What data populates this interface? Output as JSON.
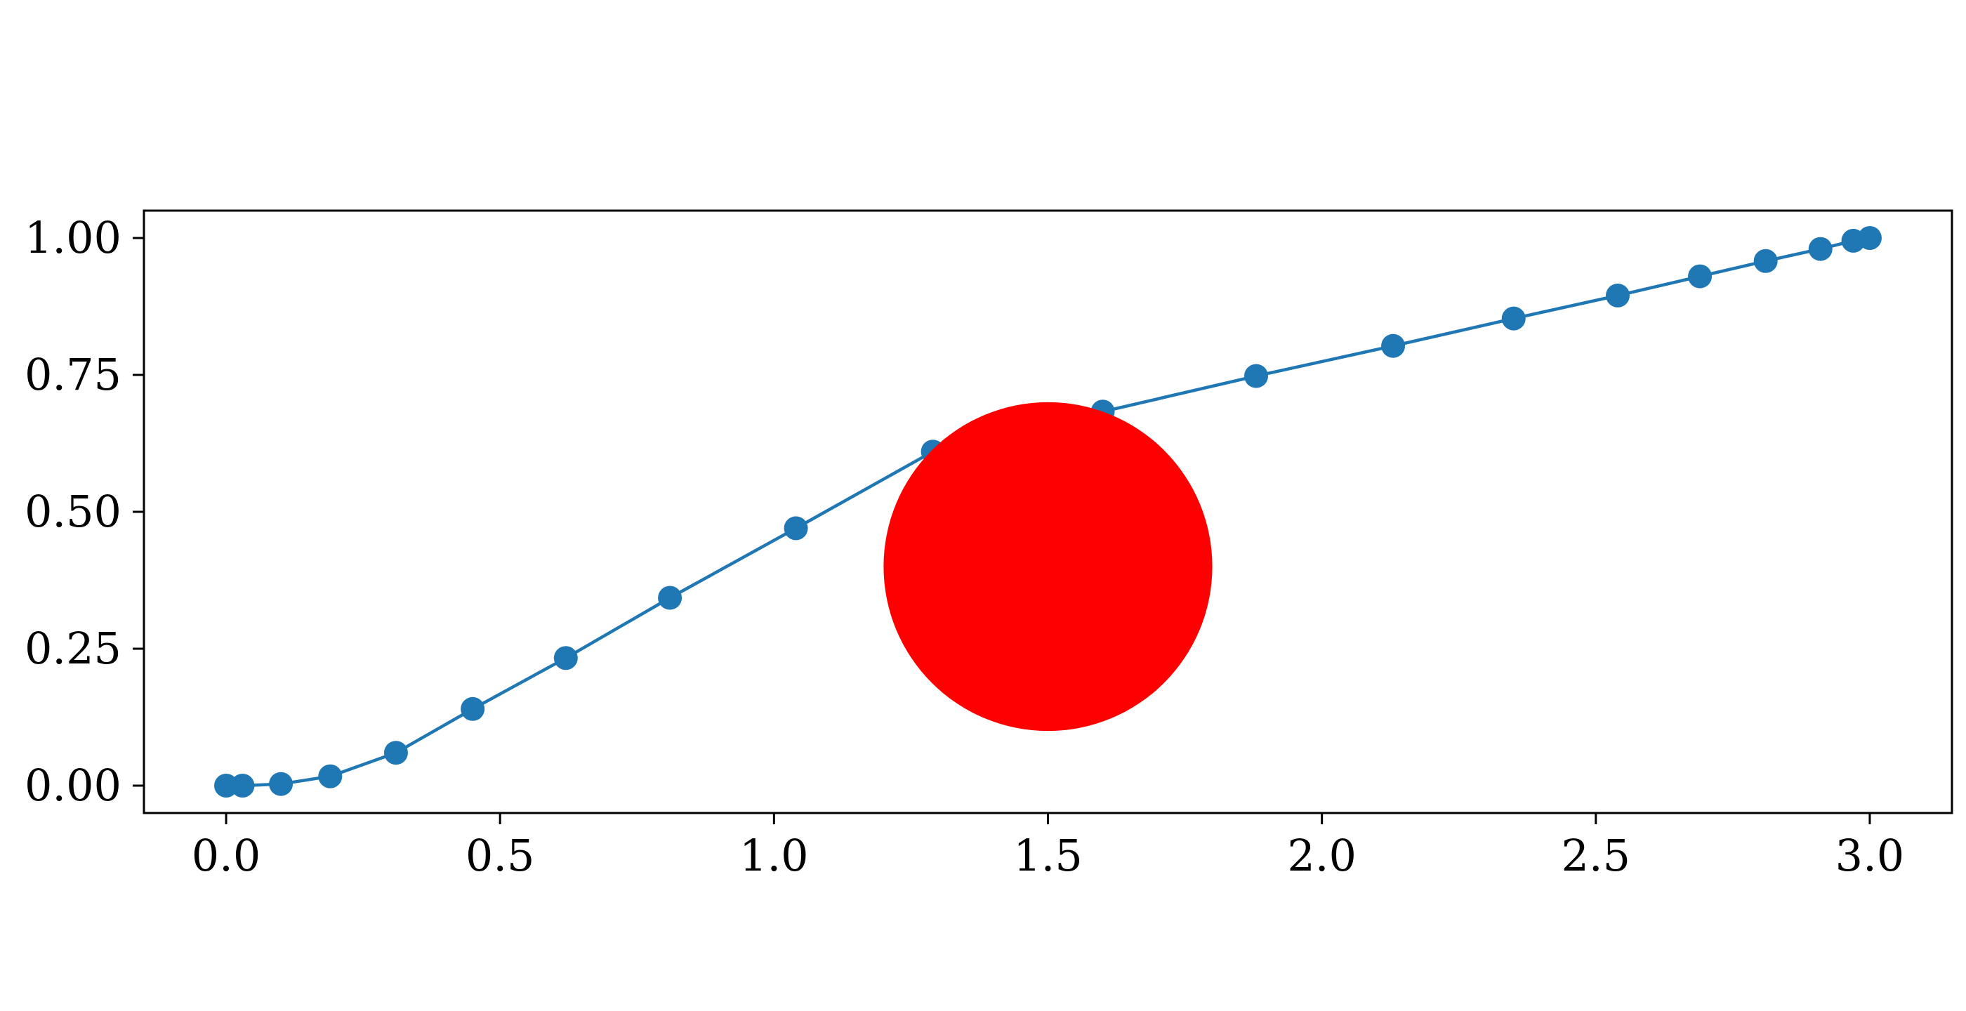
{
  "chart_data": {
    "type": "line",
    "title": "",
    "xlabel": "",
    "ylabel": "",
    "xlim": [
      -0.15,
      3.15
    ],
    "ylim": [
      -0.05,
      1.05
    ],
    "xticks": [
      0.0,
      0.5,
      1.0,
      1.5,
      2.0,
      2.5,
      3.0
    ],
    "xtick_labels": [
      "0.0",
      "0.5",
      "1.0",
      "1.5",
      "2.0",
      "2.5",
      "3.0"
    ],
    "yticks": [
      0.0,
      0.25,
      0.5,
      0.75,
      1.0
    ],
    "ytick_labels": [
      "0.00",
      "0.25",
      "0.50",
      "0.75",
      "1.00"
    ],
    "grid": false,
    "legend": "none",
    "series": [
      {
        "color": "#1f77b4",
        "marker": "circle",
        "x": [
          0.0,
          0.03,
          0.1,
          0.19,
          0.31,
          0.45,
          0.62,
          0.81,
          1.04,
          1.29,
          1.6,
          1.88,
          2.13,
          2.35,
          2.54,
          2.69,
          2.81,
          2.91,
          2.97,
          3.0
        ],
        "y": [
          0.0,
          0.0,
          0.003,
          0.017,
          0.06,
          0.14,
          0.233,
          0.343,
          0.47,
          0.61,
          0.683,
          0.748,
          0.803,
          0.853,
          0.895,
          0.93,
          0.958,
          0.98,
          0.995,
          1.0
        ]
      }
    ],
    "annotations": [
      {
        "shape": "circle",
        "center": [
          1.5,
          0.4
        ],
        "radius_x_units": 0.3,
        "color": "#ff0000"
      }
    ]
  }
}
